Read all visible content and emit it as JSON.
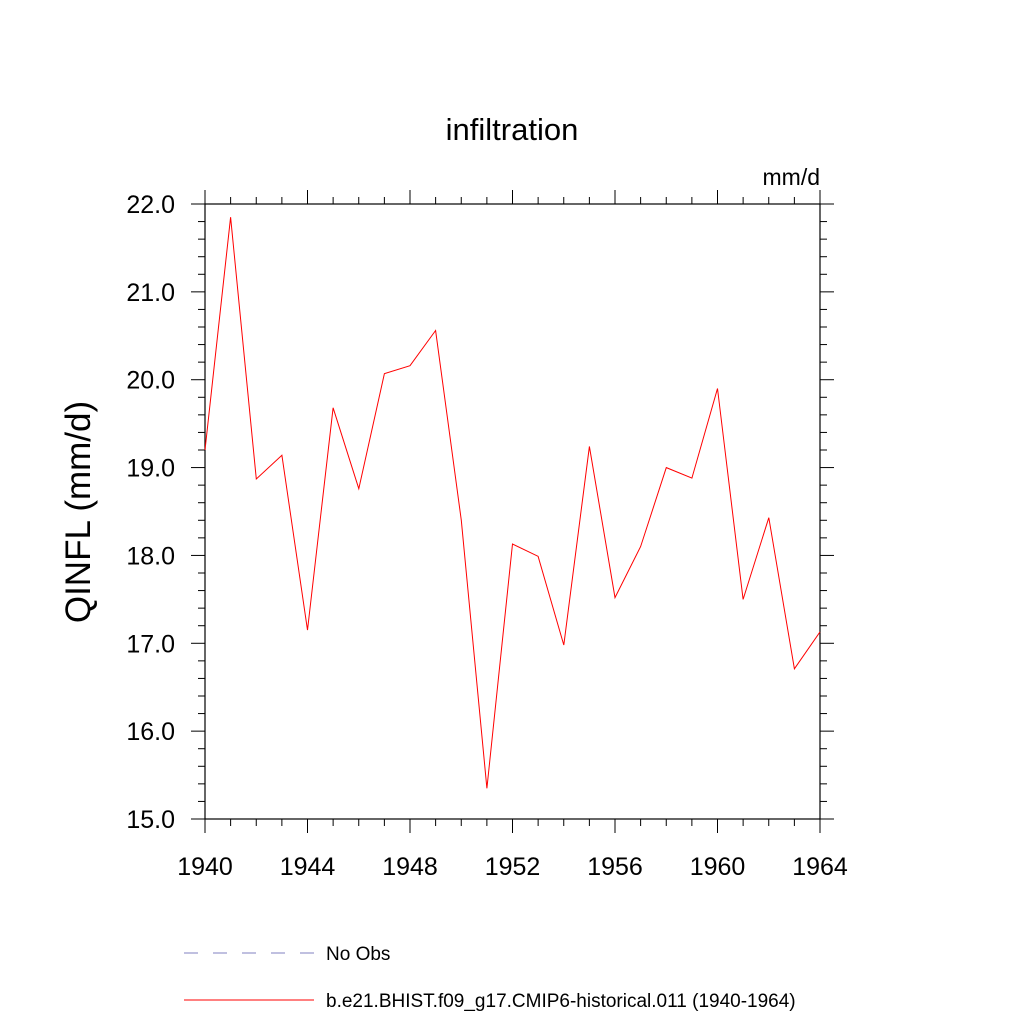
{
  "chart_data": {
    "type": "line",
    "title": "infiltration",
    "units_label": "mm/d",
    "xlabel": "",
    "ylabel": "QINFL  (mm/d)",
    "xlim": [
      1940,
      1964
    ],
    "ylim": [
      15.0,
      22.0
    ],
    "xticks": [
      1940,
      1944,
      1948,
      1952,
      1956,
      1960,
      1964
    ],
    "xtick_labels": [
      "1940",
      "1944",
      "1948",
      "1952",
      "1956",
      "1960",
      "1964"
    ],
    "yticks": [
      15.0,
      16.0,
      17.0,
      18.0,
      19.0,
      20.0,
      21.0,
      22.0
    ],
    "ytick_labels": [
      "15.0",
      "16.0",
      "17.0",
      "18.0",
      "19.0",
      "20.0",
      "21.0",
      "22.0"
    ],
    "x_minor_step": 1,
    "y_minor_step": 0.2,
    "grid": false,
    "legend_position": "bottom",
    "series": [
      {
        "name": "b.e21.BHIST.f09_g17.CMIP6-historical.011 (1940-1964)",
        "color": "#ff0000",
        "dash": "solid",
        "x": [
          1940,
          1941,
          1942,
          1943,
          1944,
          1945,
          1946,
          1947,
          1948,
          1949,
          1950,
          1951,
          1952,
          1953,
          1954,
          1955,
          1956,
          1957,
          1958,
          1959,
          1960,
          1961,
          1962,
          1963,
          1964
        ],
        "y": [
          19.2,
          21.85,
          18.87,
          19.14,
          17.15,
          19.68,
          18.76,
          20.07,
          20.16,
          20.56,
          18.4,
          15.35,
          18.13,
          17.99,
          16.98,
          19.24,
          17.52,
          18.1,
          19.0,
          18.88,
          19.9,
          17.5,
          18.43,
          16.71,
          17.13
        ]
      }
    ],
    "legend": [
      {
        "label": "No Obs",
        "color": "#8080c0",
        "dash": "dashed"
      },
      {
        "label": "b.e21.BHIST.f09_g17.CMIP6-historical.011 (1940-1964)",
        "color": "#ff0000",
        "dash": "solid"
      }
    ]
  }
}
